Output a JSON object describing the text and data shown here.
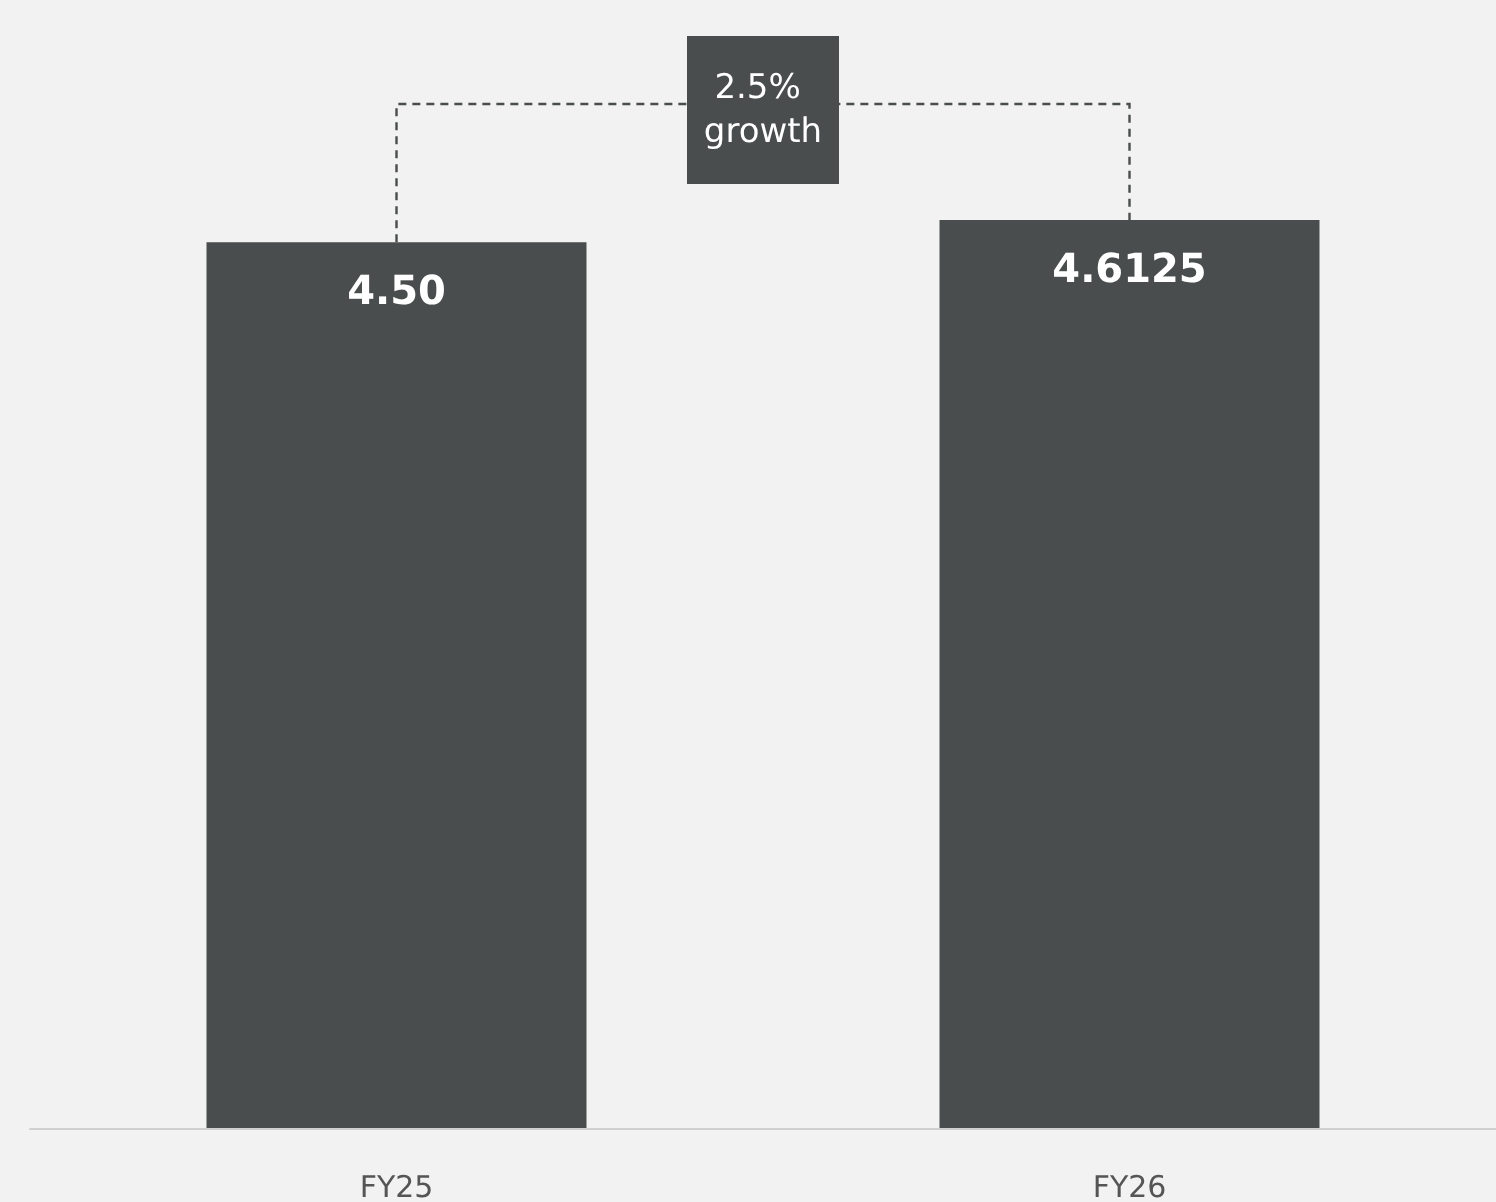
{
  "chart_data": {
    "type": "bar",
    "categories": [
      "FY25",
      "FY26"
    ],
    "values": [
      4.5,
      4.6125
    ],
    "value_labels": [
      "4.50",
      "4.6125"
    ],
    "color": "#4a4d4d",
    "annotations": [
      "2.5% growth"
    ]
  }
}
